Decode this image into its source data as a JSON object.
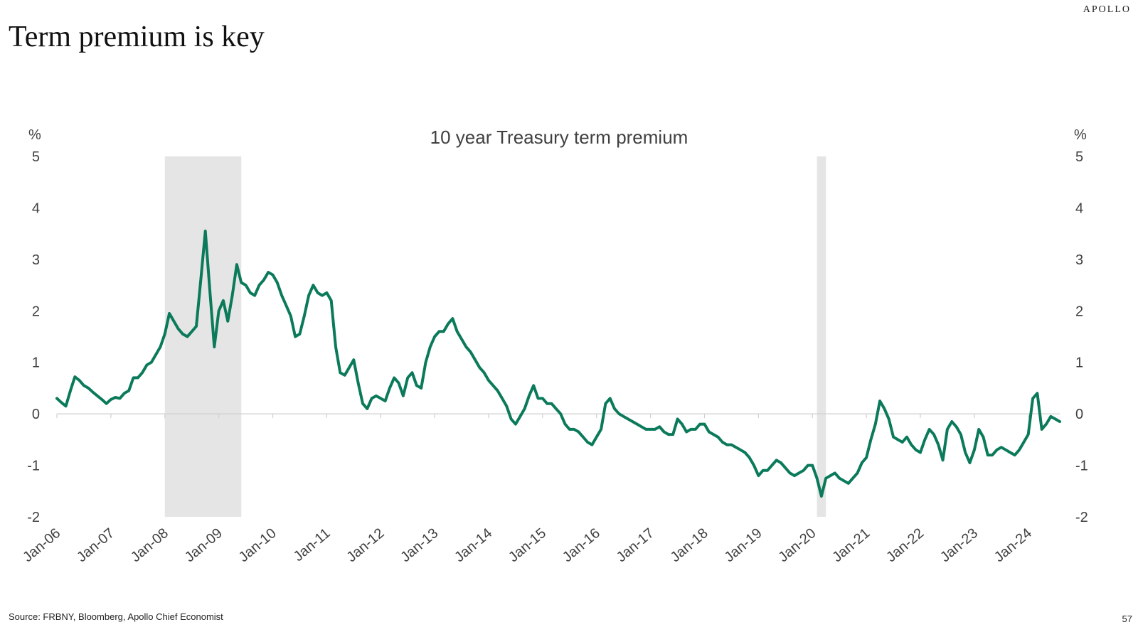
{
  "brand": "APOLLO",
  "slide_title": "Term premium is key",
  "source": "Source: FRBNY, Bloomberg, Apollo Chief Economist",
  "page_number": "57",
  "chart_data": {
    "type": "line",
    "title": "10 year Treasury term premium",
    "ylabel_left": "%",
    "ylabel_right": "%",
    "ylim": [
      -2,
      5
    ],
    "yticks": [
      5,
      4,
      3,
      2,
      1,
      0,
      -1,
      -2
    ],
    "xlim": [
      "2006-01",
      "2024-08"
    ],
    "xticks": [
      "Jan-06",
      "Jan-07",
      "Jan-08",
      "Jan-09",
      "Jan-10",
      "Jan-11",
      "Jan-12",
      "Jan-13",
      "Jan-14",
      "Jan-15",
      "Jan-16",
      "Jan-17",
      "Jan-18",
      "Jan-19",
      "Jan-20",
      "Jan-21",
      "Jan-22",
      "Jan-23",
      "Jan-24"
    ],
    "grid": false,
    "line_color": "#0b7a5a",
    "shade_color": "#e5e5e5",
    "recessions": [
      {
        "start": "2008-01",
        "end": "2009-06"
      },
      {
        "start": "2020-02",
        "end": "2020-04"
      }
    ],
    "series": [
      {
        "x": [
          "2006-01",
          "2006-02",
          "2006-03",
          "2006-04",
          "2006-05",
          "2006-06",
          "2006-07",
          "2006-08",
          "2006-09",
          "2006-10",
          "2006-11",
          "2006-12",
          "2007-01",
          "2007-02",
          "2007-03",
          "2007-04",
          "2007-05",
          "2007-06",
          "2007-07",
          "2007-08",
          "2007-09",
          "2007-10",
          "2007-11",
          "2007-12",
          "2008-01",
          "2008-02",
          "2008-03",
          "2008-04",
          "2008-05",
          "2008-06",
          "2008-07",
          "2008-08",
          "2008-09",
          "2008-10",
          "2008-11",
          "2008-12",
          "2009-01",
          "2009-02",
          "2009-03",
          "2009-04",
          "2009-05",
          "2009-06",
          "2009-07",
          "2009-08",
          "2009-09",
          "2009-10",
          "2009-11",
          "2009-12",
          "2010-01",
          "2010-02",
          "2010-03",
          "2010-04",
          "2010-05",
          "2010-06",
          "2010-07",
          "2010-08",
          "2010-09",
          "2010-10",
          "2010-11",
          "2010-12",
          "2011-01",
          "2011-02",
          "2011-03",
          "2011-04",
          "2011-05",
          "2011-06",
          "2011-07",
          "2011-08",
          "2011-09",
          "2011-10",
          "2011-11",
          "2011-12",
          "2012-01",
          "2012-02",
          "2012-03",
          "2012-04",
          "2012-05",
          "2012-06",
          "2012-07",
          "2012-08",
          "2012-09",
          "2012-10",
          "2012-11",
          "2012-12",
          "2013-01",
          "2013-02",
          "2013-03",
          "2013-04",
          "2013-05",
          "2013-06",
          "2013-07",
          "2013-08",
          "2013-09",
          "2013-10",
          "2013-11",
          "2013-12",
          "2014-01",
          "2014-02",
          "2014-03",
          "2014-04",
          "2014-05",
          "2014-06",
          "2014-07",
          "2014-08",
          "2014-09",
          "2014-10",
          "2014-11",
          "2014-12",
          "2015-01",
          "2015-02",
          "2015-03",
          "2015-04",
          "2015-05",
          "2015-06",
          "2015-07",
          "2015-08",
          "2015-09",
          "2015-10",
          "2015-11",
          "2015-12",
          "2016-01",
          "2016-02",
          "2016-03",
          "2016-04",
          "2016-05",
          "2016-06",
          "2016-07",
          "2016-08",
          "2016-09",
          "2016-10",
          "2016-11",
          "2016-12",
          "2017-01",
          "2017-02",
          "2017-03",
          "2017-04",
          "2017-05",
          "2017-06",
          "2017-07",
          "2017-08",
          "2017-09",
          "2017-10",
          "2017-11",
          "2017-12",
          "2018-01",
          "2018-02",
          "2018-03",
          "2018-04",
          "2018-05",
          "2018-06",
          "2018-07",
          "2018-08",
          "2018-09",
          "2018-10",
          "2018-11",
          "2018-12",
          "2019-01",
          "2019-02",
          "2019-03",
          "2019-04",
          "2019-05",
          "2019-06",
          "2019-07",
          "2019-08",
          "2019-09",
          "2019-10",
          "2019-11",
          "2019-12",
          "2020-01",
          "2020-02",
          "2020-03",
          "2020-04",
          "2020-05",
          "2020-06",
          "2020-07",
          "2020-08",
          "2020-09",
          "2020-10",
          "2020-11",
          "2020-12",
          "2021-01",
          "2021-02",
          "2021-03",
          "2021-04",
          "2021-05",
          "2021-06",
          "2021-07",
          "2021-08",
          "2021-09",
          "2021-10",
          "2021-11",
          "2021-12",
          "2022-01",
          "2022-02",
          "2022-03",
          "2022-04",
          "2022-05",
          "2022-06",
          "2022-07",
          "2022-08",
          "2022-09",
          "2022-10",
          "2022-11",
          "2022-12",
          "2023-01",
          "2023-02",
          "2023-03",
          "2023-04",
          "2023-05",
          "2023-06",
          "2023-07",
          "2023-08",
          "2023-09",
          "2023-10",
          "2023-11",
          "2023-12",
          "2024-01",
          "2024-02",
          "2024-03",
          "2024-04",
          "2024-05",
          "2024-06",
          "2024-07",
          "2024-08"
        ],
        "values": [
          0.3,
          0.22,
          0.15,
          0.45,
          0.72,
          0.65,
          0.55,
          0.5,
          0.42,
          0.35,
          0.28,
          0.2,
          0.28,
          0.32,
          0.3,
          0.4,
          0.45,
          0.7,
          0.7,
          0.8,
          0.95,
          1.0,
          1.15,
          1.3,
          1.55,
          1.95,
          1.8,
          1.65,
          1.55,
          1.5,
          1.6,
          1.7,
          2.6,
          3.55,
          2.4,
          1.3,
          2.0,
          2.2,
          1.8,
          2.3,
          2.9,
          2.55,
          2.5,
          2.35,
          2.3,
          2.5,
          2.6,
          2.75,
          2.7,
          2.55,
          2.3,
          2.1,
          1.9,
          1.5,
          1.55,
          1.9,
          2.3,
          2.5,
          2.35,
          2.3,
          2.35,
          2.2,
          1.3,
          0.8,
          0.75,
          0.9,
          1.05,
          0.6,
          0.2,
          0.1,
          0.3,
          0.35,
          0.3,
          0.25,
          0.5,
          0.7,
          0.6,
          0.35,
          0.7,
          0.8,
          0.55,
          0.5,
          1.0,
          1.3,
          1.5,
          1.6,
          1.6,
          1.75,
          1.85,
          1.6,
          1.45,
          1.3,
          1.2,
          1.05,
          0.9,
          0.8,
          0.65,
          0.55,
          0.45,
          0.3,
          0.15,
          -0.1,
          -0.2,
          -0.05,
          0.1,
          0.35,
          0.55,
          0.3,
          0.3,
          0.2,
          0.2,
          0.1,
          0.0,
          -0.2,
          -0.3,
          -0.3,
          -0.35,
          -0.45,
          -0.55,
          -0.6,
          -0.45,
          -0.3,
          0.2,
          0.3,
          0.1,
          0.0,
          -0.05,
          -0.1,
          -0.15,
          -0.2,
          -0.25,
          -0.3,
          -0.3,
          -0.3,
          -0.25,
          -0.35,
          -0.4,
          -0.4,
          -0.1,
          -0.2,
          -0.35,
          -0.3,
          -0.3,
          -0.2,
          -0.2,
          -0.35,
          -0.4,
          -0.45,
          -0.55,
          -0.6,
          -0.6,
          -0.65,
          -0.7,
          -0.75,
          -0.85,
          -1.0,
          -1.2,
          -1.1,
          -1.1,
          -1.0,
          -0.9,
          -0.95,
          -1.05,
          -1.15,
          -1.2,
          -1.15,
          -1.1,
          -1.0,
          -1.0,
          -1.25,
          -1.6,
          -1.25,
          -1.2,
          -1.15,
          -1.25,
          -1.3,
          -1.35,
          -1.25,
          -1.15,
          -0.95,
          -0.85,
          -0.5,
          -0.2,
          0.25,
          0.1,
          -0.1,
          -0.45,
          -0.5,
          -0.55,
          -0.45,
          -0.6,
          -0.7,
          -0.75,
          -0.5,
          -0.3,
          -0.4,
          -0.6,
          -0.9,
          -0.3,
          -0.15,
          -0.25,
          -0.4,
          -0.75,
          -0.95,
          -0.7,
          -0.3,
          -0.45,
          -0.8,
          -0.8,
          -0.7,
          -0.65,
          -0.7,
          -0.75,
          -0.8,
          -0.7,
          -0.55,
          -0.4,
          0.3,
          0.4,
          -0.3,
          -0.2,
          -0.05,
          -0.1,
          -0.15
        ]
      }
    ]
  }
}
